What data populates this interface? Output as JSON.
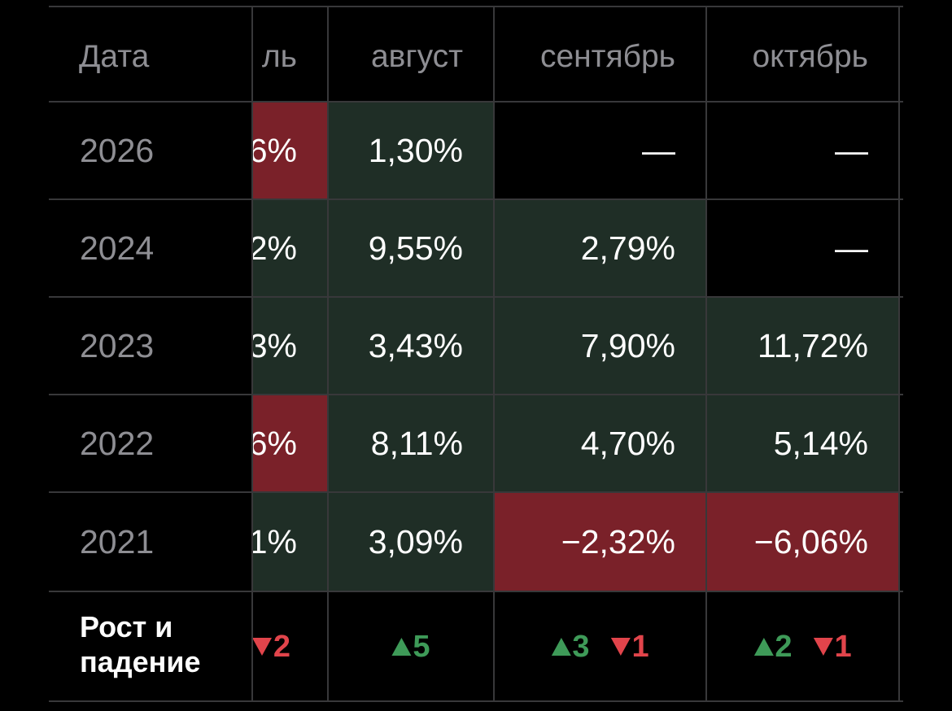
{
  "table": {
    "columns": [
      "Дата",
      "ль",
      "август",
      "сентябрь",
      "октябрь"
    ],
    "rows": [
      {
        "year": "2026",
        "cells": [
          {
            "text": "6%",
            "tone": "down"
          },
          {
            "text": "1,30%",
            "tone": "up"
          },
          {
            "text": "—",
            "tone": "none"
          },
          {
            "text": "—",
            "tone": "none"
          }
        ]
      },
      {
        "year": "2024",
        "cells": [
          {
            "text": "2%",
            "tone": "up"
          },
          {
            "text": "9,55%",
            "tone": "up"
          },
          {
            "text": "2,79%",
            "tone": "up"
          },
          {
            "text": "—",
            "tone": "none"
          }
        ]
      },
      {
        "year": "2023",
        "cells": [
          {
            "text": "3%",
            "tone": "up"
          },
          {
            "text": "3,43%",
            "tone": "up"
          },
          {
            "text": "7,90%",
            "tone": "up"
          },
          {
            "text": "11,72%",
            "tone": "up"
          }
        ]
      },
      {
        "year": "2022",
        "cells": [
          {
            "text": "6%",
            "tone": "down"
          },
          {
            "text": "8,11%",
            "tone": "up"
          },
          {
            "text": "4,70%",
            "tone": "up"
          },
          {
            "text": "5,14%",
            "tone": "up"
          }
        ]
      },
      {
        "year": "2021",
        "cells": [
          {
            "text": "1%",
            "tone": "up"
          },
          {
            "text": "3,09%",
            "tone": "up"
          },
          {
            "text": "−2,32%",
            "tone": "down"
          },
          {
            "text": "−6,06%",
            "tone": "down"
          }
        ]
      }
    ],
    "footer": {
      "label": "Рост и падение",
      "cells": [
        {
          "down": 2
        },
        {
          "up": 5
        },
        {
          "up": 3,
          "down": 1
        },
        {
          "up": 2,
          "down": 1
        }
      ]
    }
  }
}
